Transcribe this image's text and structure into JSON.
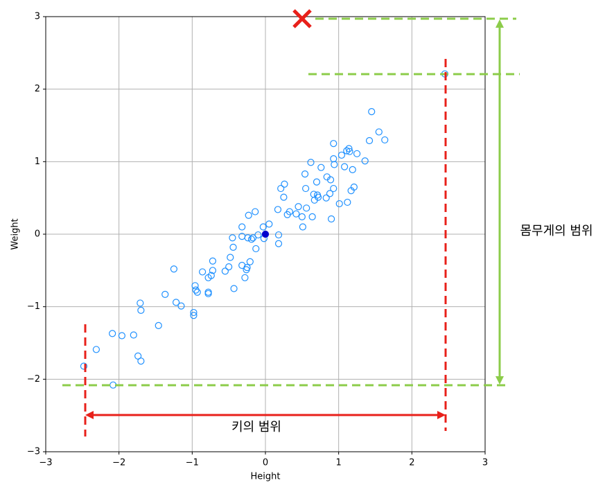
{
  "chart_data": {
    "type": "scatter",
    "x_label": "Height",
    "y_label": "Weight",
    "xlim": [
      -3,
      3
    ],
    "ylim": [
      -3,
      3
    ],
    "xticks": [
      {
        "value": -3,
        "label": "−3"
      },
      {
        "value": -2,
        "label": "−2"
      },
      {
        "value": -1,
        "label": "−1"
      },
      0,
      1,
      2,
      3
    ],
    "yticks": [
      {
        "value": -3,
        "label": "−3"
      },
      {
        "value": -2,
        "label": "−2"
      },
      {
        "value": -1,
        "label": "−1"
      },
      0,
      1,
      2,
      3
    ],
    "grid": true,
    "series": [
      {
        "color": "#1e90ff",
        "filled": false,
        "x": [
          -2.48,
          -2.31,
          -2.08,
          -2.09,
          -1.96,
          -1.8,
          -1.74,
          -1.7,
          -1.71,
          -1.7,
          -1.46,
          -1.37,
          -1.25,
          -1.22,
          -1.15,
          -0.98,
          -0.98,
          -0.96,
          -0.95,
          -0.93,
          -0.86,
          -0.78,
          -0.78,
          -0.78,
          -0.74,
          -0.72,
          -0.72,
          -0.55,
          -0.5,
          -0.48,
          -0.45,
          -0.44,
          -0.43,
          -0.32,
          -0.32,
          -0.32,
          -0.28,
          -0.26,
          -0.25,
          -0.24,
          -0.23,
          -0.21,
          -0.19,
          -0.17,
          -0.14,
          -0.13,
          -0.1,
          -0.03,
          -0.02,
          0.05,
          0.17,
          0.18,
          0.18,
          0.21,
          0.25,
          0.26,
          0.3,
          0.33,
          0.42,
          0.45,
          0.5,
          0.51,
          0.54,
          0.55,
          0.56,
          0.62,
          0.64,
          0.66,
          0.67,
          0.7,
          0.71,
          0.72,
          0.76,
          0.83,
          0.84,
          0.88,
          0.89,
          0.9,
          0.93,
          0.93,
          0.93,
          0.94,
          1.01,
          1.04,
          1.08,
          1.11,
          1.12,
          1.14,
          1.15,
          1.17,
          1.19,
          1.21,
          1.25,
          1.36,
          1.42,
          1.45,
          1.55,
          1.63,
          2.45
        ],
        "y": [
          -1.82,
          -1.59,
          -2.08,
          -1.37,
          -1.4,
          -1.39,
          -1.68,
          -1.75,
          -0.95,
          -1.05,
          -1.26,
          -0.83,
          -0.48,
          -0.94,
          -0.99,
          -1.08,
          -1.12,
          -0.71,
          -0.77,
          -0.8,
          -0.52,
          -0.6,
          -0.8,
          -0.82,
          -0.57,
          -0.37,
          -0.5,
          -0.51,
          -0.45,
          -0.32,
          -0.05,
          -0.18,
          -0.75,
          0.1,
          -0.03,
          -0.43,
          -0.6,
          -0.49,
          -0.46,
          -0.05,
          0.26,
          -0.38,
          -0.07,
          -0.05,
          0.31,
          -0.2,
          -0.01,
          0.1,
          -0.06,
          0.14,
          0.34,
          -0.01,
          -0.13,
          0.63,
          0.51,
          0.69,
          0.27,
          0.31,
          0.28,
          0.38,
          0.24,
          0.1,
          0.83,
          0.63,
          0.36,
          0.99,
          0.24,
          0.55,
          0.47,
          0.72,
          0.54,
          0.51,
          0.92,
          0.5,
          0.79,
          0.56,
          0.75,
          0.21,
          1.25,
          1.04,
          0.63,
          0.96,
          0.42,
          1.09,
          0.93,
          1.15,
          0.44,
          1.18,
          1.14,
          0.6,
          0.89,
          0.65,
          1.11,
          1.01,
          1.29,
          1.69,
          1.41,
          1.3,
          2.21
        ]
      },
      {
        "color": "#0000cd",
        "filled": true,
        "x": [
          0
        ],
        "y": [
          0
        ]
      }
    ],
    "annotations": [
      {
        "text": "몸무게의 범위"
      },
      {
        "text": "키의 범위"
      }
    ]
  }
}
